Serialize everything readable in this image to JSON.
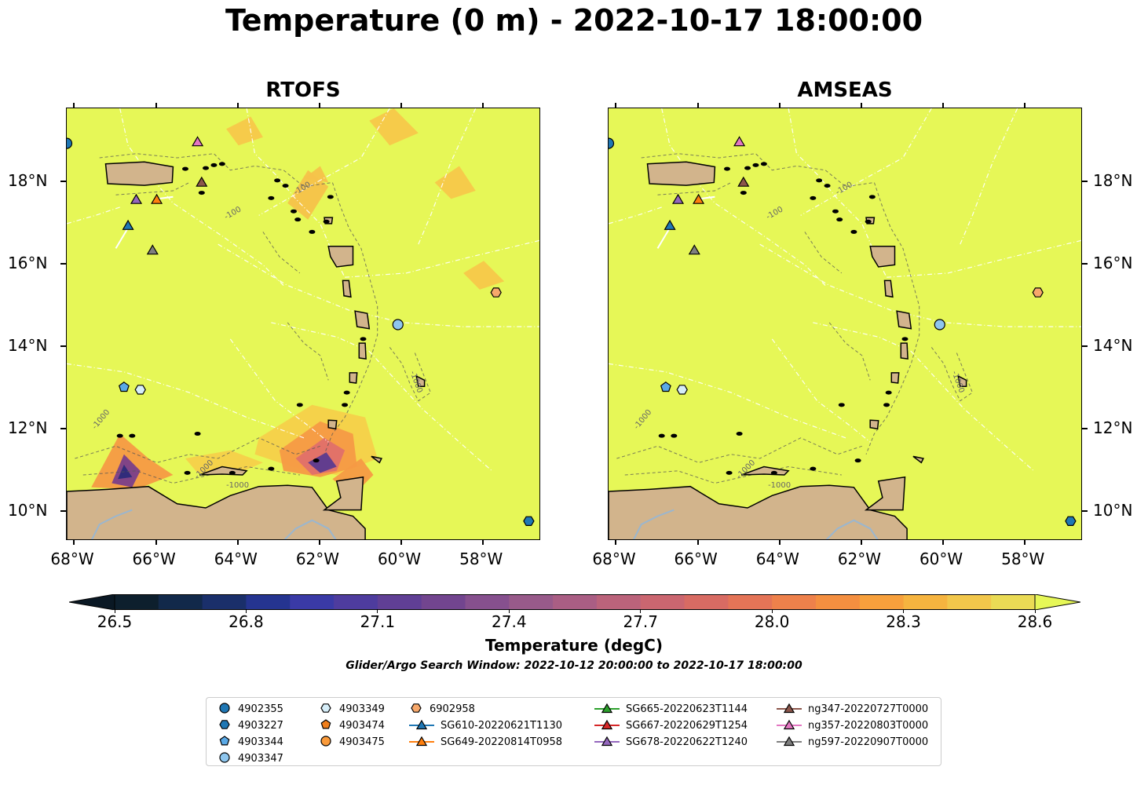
{
  "title": "Temperature (0 m) - 2022-10-17 18:00:00",
  "panels": [
    {
      "title": "RTOFS"
    },
    {
      "title": "AMSEAS"
    }
  ],
  "axes": {
    "x_ticks": [
      "68°W",
      "66°W",
      "64°W",
      "62°W",
      "60°W",
      "58°W"
    ],
    "y_ticks": [
      "18°N",
      "16°N",
      "14°N",
      "12°N",
      "10°N"
    ],
    "x_range_deg": [
      -68.2,
      -56.6
    ],
    "y_range_deg": [
      9.3,
      19.8
    ]
  },
  "contour_labels": [
    "-1000",
    "-100"
  ],
  "colorbar": {
    "label": "Temperature (degC)",
    "ticks": [
      "26.5",
      "26.8",
      "27.1",
      "27.4",
      "27.7",
      "28.0",
      "28.3",
      "28.6"
    ],
    "range": [
      26.5,
      28.6
    ],
    "extend": "both"
  },
  "search_window": "Glider/Argo Search Window: 2022-10-12 20:00:00 to 2022-10-17 18:00:00",
  "colors": {
    "ocean": "#e6f757",
    "land": "#d2b48c",
    "river": "#9ab6cf"
  },
  "legend": [
    {
      "label": "4902355",
      "marker": "circle",
      "color": "#1f77b4"
    },
    {
      "label": "4903227",
      "marker": "hexagon",
      "color": "#1f77b4"
    },
    {
      "label": "4903344",
      "marker": "pentagon",
      "color": "#5aa9e6"
    },
    {
      "label": "4903347",
      "marker": "circle",
      "color": "#8ec6ee"
    },
    {
      "label": "4903349",
      "marker": "hexagon",
      "color": "#d6eef9"
    },
    {
      "label": "4903474",
      "marker": "pentagon",
      "color": "#f07f1c"
    },
    {
      "label": "4903475",
      "marker": "circle",
      "color": "#fa9a3a"
    },
    {
      "label": "6902958",
      "marker": "hexagon",
      "color": "#f7a86b"
    },
    {
      "label": "SG610-20220621T1130",
      "marker": "triangle-line",
      "color": "#1f77b4"
    },
    {
      "label": "SG649-20220814T0958",
      "marker": "triangle-line",
      "color": "#ff7f0e"
    },
    {
      "label": "SG665-20220623T1144",
      "marker": "triangle-line",
      "color": "#2ca02c"
    },
    {
      "label": "SG667-20220629T1254",
      "marker": "triangle-line",
      "color": "#d62728"
    },
    {
      "label": "SG678-20220622T1240",
      "marker": "triangle-line",
      "color": "#9467bd"
    },
    {
      "label": "ng347-20220727T0000",
      "marker": "triangle-line",
      "color": "#8c564b"
    },
    {
      "label": "ng357-20220803T0000",
      "marker": "triangle-line",
      "color": "#e377c2"
    },
    {
      "label": "ng597-20220907T0000",
      "marker": "triangle-line",
      "color": "#7f7f7f"
    }
  ],
  "observations": [
    {
      "id": "4902355",
      "lon": -68.2,
      "lat": 18.95
    },
    {
      "id": "4903227",
      "lon": -56.9,
      "lat": 9.78
    },
    {
      "id": "4903344",
      "lon": -66.8,
      "lat": 13.03
    },
    {
      "id": "4903347",
      "lon": -60.1,
      "lat": 14.55
    },
    {
      "id": "4903349",
      "lon": -66.4,
      "lat": 12.97
    },
    {
      "id": "6902958",
      "lon": -57.7,
      "lat": 15.33
    },
    {
      "id": "SG610-20220621T1130",
      "lon": -66.7,
      "lat": 16.97
    },
    {
      "id": "SG649-20220814T0958",
      "lon": -66.0,
      "lat": 17.6
    },
    {
      "id": "SG678-20220622T1240",
      "lon": -66.5,
      "lat": 17.6
    },
    {
      "id": "ng347-20220727T0000",
      "lon": -64.9,
      "lat": 18.02
    },
    {
      "id": "ng357-20220803T0000",
      "lon": -65.0,
      "lat": 19.0
    },
    {
      "id": "ng597-20220907T0000",
      "lon": -66.1,
      "lat": 16.37
    }
  ]
}
